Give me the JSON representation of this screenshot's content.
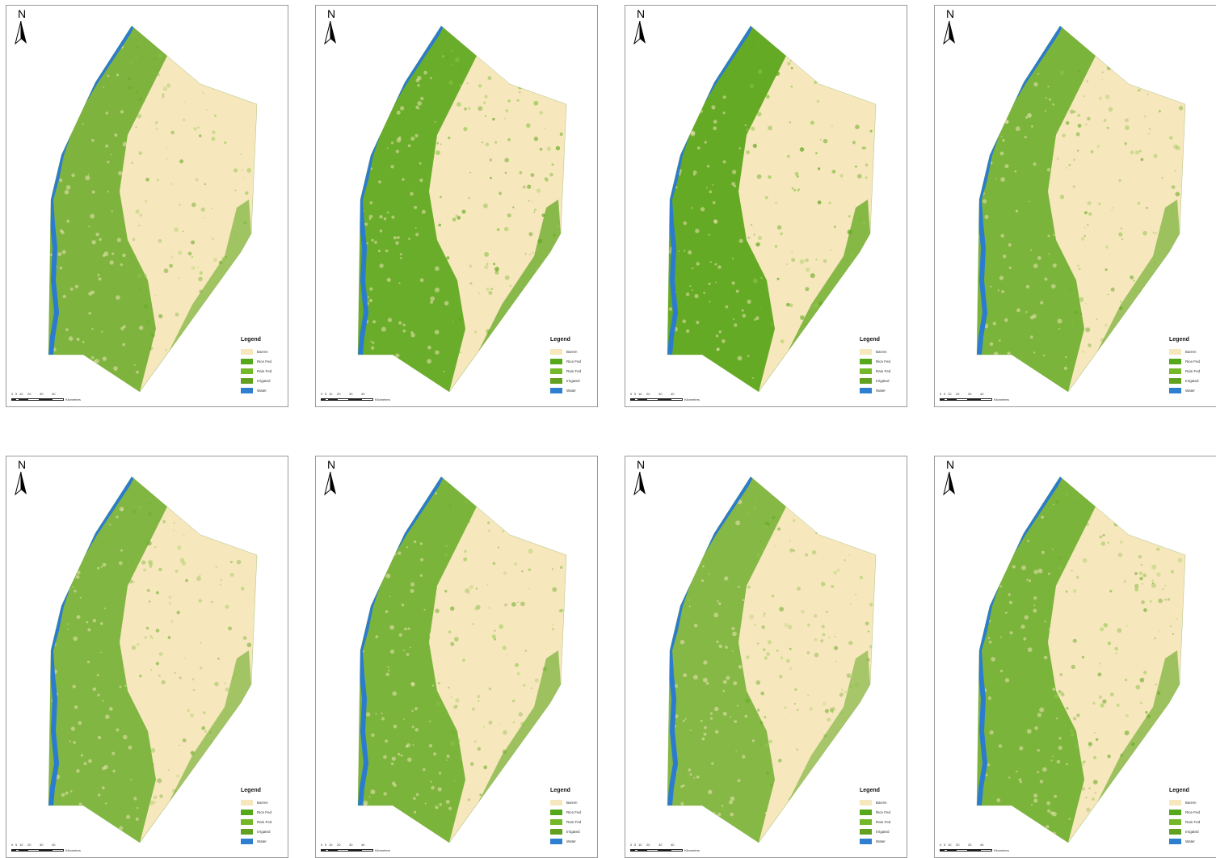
{
  "panels": [
    {
      "north_label": "N",
      "legend_title": "Legend",
      "scale_ticks": [
        "0",
        "5",
        "10",
        "20",
        "30",
        "40"
      ],
      "scale_unit": "Kilometers"
    },
    {
      "north_label": "N",
      "legend_title": "Legend",
      "scale_ticks": [
        "0",
        "5",
        "10",
        "20",
        "30",
        "40"
      ],
      "scale_unit": "Kilometers"
    },
    {
      "north_label": "N",
      "legend_title": "Legend",
      "scale_ticks": [
        "0",
        "5",
        "10",
        "20",
        "30",
        "40"
      ],
      "scale_unit": "Kilometers"
    },
    {
      "north_label": "N",
      "legend_title": "Legend",
      "scale_ticks": [
        "0",
        "5",
        "10",
        "20",
        "30",
        "40"
      ],
      "scale_unit": "Kilometers"
    },
    {
      "north_label": "N",
      "legend_title": "Legend",
      "scale_ticks": [
        "0",
        "5",
        "10",
        "20",
        "30",
        "40"
      ],
      "scale_unit": "Kilometers"
    },
    {
      "north_label": "N",
      "legend_title": "Legend",
      "scale_ticks": [
        "0",
        "5",
        "10",
        "20",
        "30",
        "40"
      ],
      "scale_unit": "Kilometers"
    },
    {
      "north_label": "N",
      "legend_title": "Legend",
      "scale_ticks": [
        "0",
        "5",
        "10",
        "20",
        "30",
        "40"
      ],
      "scale_unit": "Kilometers"
    },
    {
      "north_label": "N",
      "legend_title": "Legend",
      "scale_ticks": [
        "0",
        "5",
        "10",
        "20",
        "30",
        "40"
      ],
      "scale_unit": "Kilometers"
    }
  ],
  "legend_items": [
    {
      "label": "Barren",
      "color": "#f7e7bd"
    },
    {
      "label": "Rice Fed",
      "color": "#55a81a"
    },
    {
      "label": "Rain Fed",
      "color": "#74b82a"
    },
    {
      "label": "Irrigated",
      "color": "#62a020"
    },
    {
      "label": "Water",
      "color": "#2e7fd0"
    }
  ],
  "colors": {
    "barren": "#f7e7bd",
    "vegetation": "#5fa81e",
    "vegetation_light": "#8fc84a",
    "water": "#2b7bd0",
    "border": "#9a9a9a"
  }
}
